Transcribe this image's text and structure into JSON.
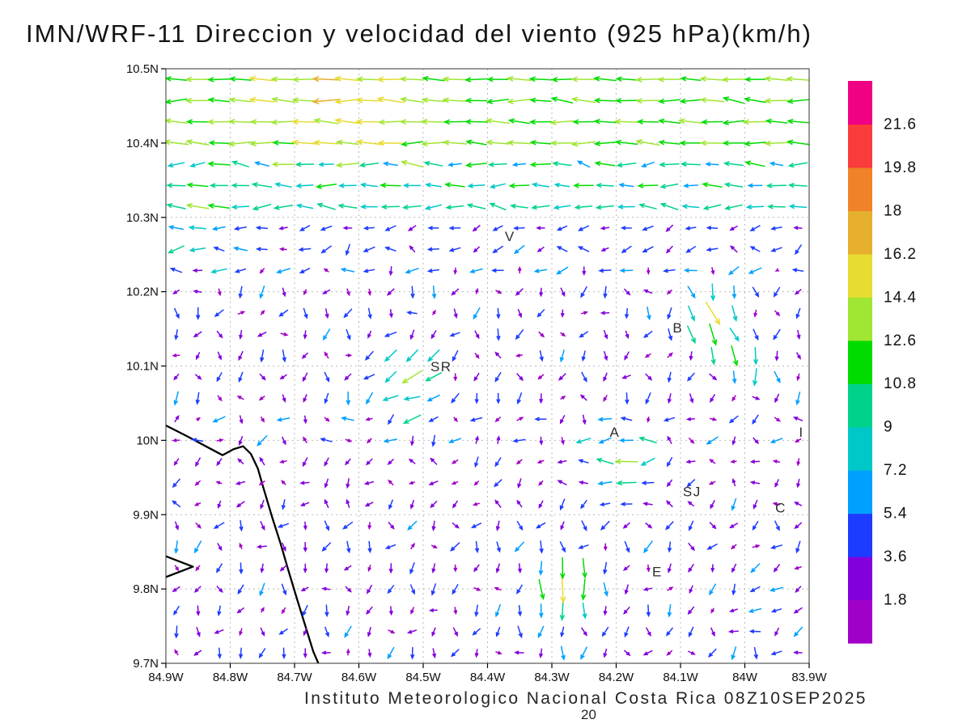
{
  "title": "IMN/WRF-11 Direccion y velocidad del viento (925 hPa)(km/h)",
  "caption": "Instituto Meteorologico Nacional Costa Rica 08Z10SEP2025",
  "page_number": "20",
  "chart_data": {
    "type": "quiver",
    "title": "IMN/WRF-11 Direccion y velocidad del viento (925 hPa)(km/h)",
    "model": "IMN/WRF-11",
    "variable": "Direccion y velocidad del viento",
    "pressure_level": "925 hPa",
    "units": "km/h",
    "valid_time": "08Z10SEP2025",
    "region": "Costa Rica",
    "lon_range": [
      -84.9,
      -83.9
    ],
    "lat_range": [
      9.7,
      10.5
    ],
    "grid_on": true,
    "x_tick_values": [
      -84.9,
      -84.8,
      -84.7,
      -84.6,
      -84.5,
      -84.4,
      -84.3,
      -84.2,
      -84.1,
      -84.0,
      -83.9
    ],
    "x_tick_labels": [
      "84.9W",
      "84.8W",
      "84.7W",
      "84.6W",
      "84.5W",
      "84.4W",
      "84.3W",
      "84.2W",
      "84.1W",
      "84W",
      "83.9W"
    ],
    "y_tick_values": [
      10.5,
      10.4,
      10.3,
      10.2,
      10.1,
      10.0,
      9.9,
      9.8,
      9.7
    ],
    "y_tick_labels": [
      "10.5N",
      "10.4N",
      "10.3N",
      "10.2N",
      "10.1N",
      "10N",
      "9.9N",
      "9.8N",
      "9.7N"
    ],
    "colorbar": {
      "orientation": "vertical",
      "position": "right",
      "units": "km/h",
      "level_step": 1.8,
      "level_labels_top_to_bottom": [
        "21.6",
        "19.8",
        "18",
        "16.2",
        "14.4",
        "12.6",
        "10.8",
        "9",
        "7.2",
        "5.4",
        "3.6",
        "1.8"
      ],
      "colors_bottom_to_top": [
        "#A000C8",
        "#8200DC",
        "#1E3CFF",
        "#00A0FF",
        "#00C8C8",
        "#00D28C",
        "#00DC00",
        "#A0E632",
        "#E6DC32",
        "#E6AF2D",
        "#F08228",
        "#FA3C3C",
        "#F00082"
      ]
    },
    "stations": [
      {
        "label": "V",
        "lon": -84.365,
        "lat": 10.268
      },
      {
        "label": "B",
        "lon": -84.104,
        "lat": 10.145
      },
      {
        "label": "SR",
        "lon": -84.472,
        "lat": 10.093
      },
      {
        "label": "A",
        "lon": -84.202,
        "lat": 10.005
      },
      {
        "label": "I",
        "lon": -83.912,
        "lat": 10.005
      },
      {
        "label": "SJ",
        "lon": -84.082,
        "lat": 9.925
      },
      {
        "label": "C",
        "lon": -83.944,
        "lat": 9.903
      },
      {
        "label": "E",
        "lon": -84.136,
        "lat": 9.817
      }
    ],
    "coastline": [
      [
        [
          -84.9,
          10.02
        ],
        [
          -84.868,
          10.006
        ],
        [
          -84.838,
          9.992
        ],
        [
          -84.812,
          9.98
        ],
        [
          -84.795,
          9.988
        ],
        [
          -84.78,
          9.992
        ],
        [
          -84.768,
          9.982
        ],
        [
          -84.757,
          9.962
        ],
        [
          -84.748,
          9.935
        ],
        [
          -84.735,
          9.897
        ],
        [
          -84.722,
          9.862
        ],
        [
          -84.71,
          9.826
        ],
        [
          -84.696,
          9.786
        ],
        [
          -84.682,
          9.747
        ],
        [
          -84.671,
          9.716
        ],
        [
          -84.663,
          9.7
        ]
      ],
      [
        [
          -84.9,
          9.844
        ],
        [
          -84.858,
          9.83
        ],
        [
          -84.9,
          9.816
        ]
      ]
    ],
    "wind_field": {
      "description": "Wind vectors colored by speed (km/h): strong easterlies (green/yellow, 10-16) along the north edge, weak variable winds (purple/blue, 1-6) over the interior, locally stronger patches (yellow/orange, 12-19) near San Ramon, Alajuela and the southern valley, weak southward drainage flow in the southwest.",
      "grid_nx": 30,
      "grid_ny": 28,
      "bands": [
        {
          "lat_min": 10.4,
          "lat_max": 10.51,
          "u": -12.5,
          "v": 0.4,
          "jitter": 2.2
        },
        {
          "lat_min": 10.3,
          "lat_max": 10.4,
          "u": -9.0,
          "v": 0.2,
          "jitter": 2.6
        },
        {
          "lat_min": 10.22,
          "lat_max": 10.3,
          "u": -3.5,
          "v": -1.0,
          "jitter": 3.0
        },
        {
          "lat_min": 10.04,
          "lat_max": 10.22,
          "u": -0.5,
          "v": -2.4,
          "jitter": 3.3
        },
        {
          "lat_min": 9.9,
          "lat_max": 10.04,
          "u": -1.5,
          "v": -1.0,
          "jitter": 3.4
        },
        {
          "lat_min": 9.69,
          "lat_max": 9.9,
          "u": -0.8,
          "v": -2.6,
          "jitter": 3.0
        }
      ],
      "hotspots": [
        {
          "lon": -84.62,
          "lat": 10.49,
          "du": -3.0,
          "dv": 0.3,
          "r": 0.12
        },
        {
          "lon": -84.85,
          "lat": 10.28,
          "du": -4.5,
          "dv": 1.5,
          "r": 0.06
        },
        {
          "lon": -84.52,
          "lat": 10.08,
          "du": -10.0,
          "dv": -3.5,
          "r": 0.055
        },
        {
          "lon": -84.19,
          "lat": 9.97,
          "du": -10.5,
          "dv": 1.5,
          "r": 0.05
        },
        {
          "lon": -84.05,
          "lat": 10.16,
          "du": 8.0,
          "dv": -13.0,
          "r": 0.04
        },
        {
          "lon": -84.28,
          "lat": 9.8,
          "du": 2.0,
          "dv": -12.0,
          "r": 0.05
        },
        {
          "lon": -83.96,
          "lat": 9.78,
          "du": -4.0,
          "dv": 1.2,
          "r": 0.06
        },
        {
          "lon": -83.99,
          "lat": 10.1,
          "du": 2.0,
          "dv": -6.0,
          "r": 0.04
        }
      ]
    }
  }
}
